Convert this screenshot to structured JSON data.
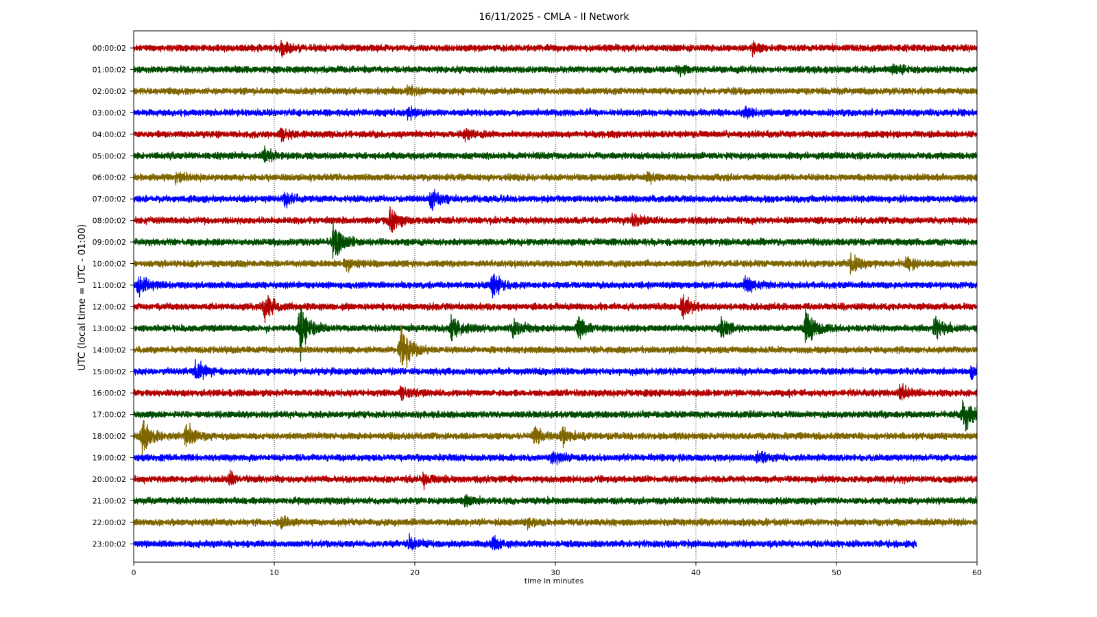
{
  "chart_data": {
    "type": "line",
    "title": "16/11/2025 - CMLA - II Network",
    "xlabel": "time in minutes",
    "ylabel": "UTC (local time = UTC - 01:00)",
    "xlim": [
      0,
      60
    ],
    "x_ticks": [
      0,
      10,
      20,
      30,
      40,
      50,
      60
    ],
    "grid": "vertical dotted lines at x ticks",
    "series": [
      {
        "label": "00:00:02",
        "color": "#b30000",
        "end_minute": 60,
        "events": [
          {
            "t": 10.5,
            "amp": 1.4
          },
          {
            "t": 44,
            "amp": 1.1
          }
        ]
      },
      {
        "label": "01:00:02",
        "color": "#004d00",
        "end_minute": 60,
        "events": [
          {
            "t": 38.8,
            "amp": 1.1
          },
          {
            "t": 54,
            "amp": 1.1
          }
        ]
      },
      {
        "label": "02:00:02",
        "color": "#806600",
        "end_minute": 60,
        "events": [
          {
            "t": 19.5,
            "amp": 1.1
          }
        ]
      },
      {
        "label": "03:00:02",
        "color": "#0000ff",
        "end_minute": 60,
        "events": [
          {
            "t": 19.5,
            "amp": 1.2
          },
          {
            "t": 43.5,
            "amp": 1.1
          }
        ]
      },
      {
        "label": "04:00:02",
        "color": "#b30000",
        "end_minute": 60,
        "events": [
          {
            "t": 10.5,
            "amp": 1.2
          },
          {
            "t": 23.5,
            "amp": 1.2
          }
        ]
      },
      {
        "label": "05:00:02",
        "color": "#004d00",
        "end_minute": 60,
        "events": [
          {
            "t": 9.3,
            "amp": 1.2
          }
        ]
      },
      {
        "label": "06:00:02",
        "color": "#806600",
        "end_minute": 60,
        "events": [
          {
            "t": 3,
            "amp": 1.1
          },
          {
            "t": 36.5,
            "amp": 1.1
          }
        ]
      },
      {
        "label": "07:00:02",
        "color": "#0000ff",
        "end_minute": 60,
        "events": [
          {
            "t": 10.7,
            "amp": 1.5
          },
          {
            "t": 21.1,
            "amp": 1.8
          }
        ]
      },
      {
        "label": "08:00:02",
        "color": "#b30000",
        "end_minute": 60,
        "events": [
          {
            "t": 18.2,
            "amp": 2.4
          },
          {
            "t": 35.5,
            "amp": 1.3
          }
        ]
      },
      {
        "label": "09:00:02",
        "color": "#004d00",
        "end_minute": 60,
        "events": [
          {
            "t": 14.2,
            "amp": 3.4
          }
        ]
      },
      {
        "label": "10:00:02",
        "color": "#806600",
        "end_minute": 60,
        "events": [
          {
            "t": 15,
            "amp": 1.4
          },
          {
            "t": 51,
            "amp": 2.0
          },
          {
            "t": 55,
            "amp": 1.5
          }
        ]
      },
      {
        "label": "11:00:02",
        "color": "#0000ff",
        "end_minute": 60,
        "events": [
          {
            "t": 0.3,
            "amp": 2.0
          },
          {
            "t": 25.5,
            "amp": 2.0
          },
          {
            "t": 43.5,
            "amp": 1.4
          }
        ]
      },
      {
        "label": "12:00:02",
        "color": "#b30000",
        "end_minute": 60,
        "events": [
          {
            "t": 9.3,
            "amp": 2.5
          },
          {
            "t": 39,
            "amp": 2.0
          }
        ]
      },
      {
        "label": "13:00:02",
        "color": "#004d00",
        "end_minute": 60,
        "events": [
          {
            "t": 11.8,
            "amp": 4.2
          },
          {
            "t": 22.6,
            "amp": 2.2
          },
          {
            "t": 27,
            "amp": 1.6
          },
          {
            "t": 31.6,
            "amp": 2.0
          },
          {
            "t": 41.8,
            "amp": 1.9
          },
          {
            "t": 47.8,
            "amp": 3.2
          },
          {
            "t": 57,
            "amp": 2.0
          }
        ]
      },
      {
        "label": "14:00:02",
        "color": "#806600",
        "end_minute": 60,
        "events": [
          {
            "t": 19,
            "amp": 4.0
          }
        ]
      },
      {
        "label": "15:00:02",
        "color": "#0000ff",
        "end_minute": 60,
        "events": [
          {
            "t": 4.4,
            "amp": 2.0
          },
          {
            "t": 59.6,
            "amp": 1.3
          }
        ]
      },
      {
        "label": "16:00:02",
        "color": "#b30000",
        "end_minute": 60,
        "events": [
          {
            "t": 19,
            "amp": 1.5
          },
          {
            "t": 54.5,
            "amp": 1.3
          }
        ]
      },
      {
        "label": "17:00:02",
        "color": "#004d00",
        "end_minute": 60,
        "events": [
          {
            "t": 59,
            "amp": 3.0
          }
        ]
      },
      {
        "label": "18:00:02",
        "color": "#806600",
        "end_minute": 60,
        "events": [
          {
            "t": 0.6,
            "amp": 3.2
          },
          {
            "t": 3.7,
            "amp": 2.0
          },
          {
            "t": 28.5,
            "amp": 1.6
          },
          {
            "t": 30.5,
            "amp": 1.6
          }
        ]
      },
      {
        "label": "19:00:02",
        "color": "#0000ff",
        "end_minute": 60,
        "events": [
          {
            "t": 29.8,
            "amp": 1.3
          },
          {
            "t": 44.3,
            "amp": 1.2
          }
        ]
      },
      {
        "label": "20:00:02",
        "color": "#b30000",
        "end_minute": 60,
        "events": [
          {
            "t": 6.8,
            "amp": 1.3
          },
          {
            "t": 20.6,
            "amp": 1.2
          }
        ]
      },
      {
        "label": "21:00:02",
        "color": "#004d00",
        "end_minute": 60,
        "events": [
          {
            "t": 23.5,
            "amp": 1.1
          }
        ]
      },
      {
        "label": "22:00:02",
        "color": "#806600",
        "end_minute": 60,
        "events": [
          {
            "t": 10.5,
            "amp": 1.1
          },
          {
            "t": 28,
            "amp": 1.0
          }
        ]
      },
      {
        "label": "23:00:02",
        "color": "#0000ff",
        "end_minute": 55.7,
        "events": [
          {
            "t": 19.6,
            "amp": 1.2
          },
          {
            "t": 25.5,
            "amp": 1.2
          }
        ]
      }
    ]
  }
}
